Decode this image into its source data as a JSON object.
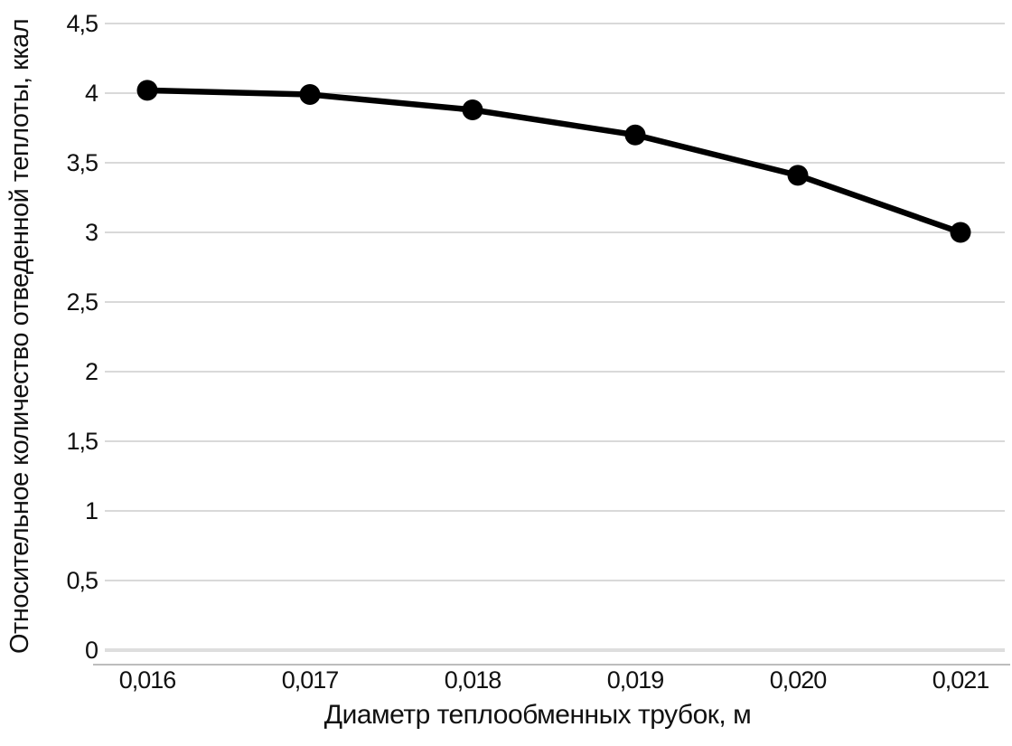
{
  "chart_data": {
    "type": "line",
    "xlabel": "Диаметр теплообменных трубок, м",
    "ylabel": "Относительное количество отведенной теплоты, ккал",
    "x": [
      0.016,
      0.017,
      0.018,
      0.019,
      0.02,
      0.021
    ],
    "x_tick_labels": [
      "0,016",
      "0,017",
      "0,018",
      "0,019",
      "0,020",
      "0,021"
    ],
    "yticks": [
      4.5,
      4,
      3.5,
      3,
      2.5,
      2,
      1.5,
      1,
      0.5,
      0
    ],
    "y_tick_labels": [
      "4,5",
      "4",
      "3,5",
      "3",
      "2,5",
      "2",
      "1,5",
      "1",
      "0,5",
      "0"
    ],
    "series": [
      {
        "values": [
          4.02,
          3.99,
          3.88,
          3.7,
          3.41,
          3.0
        ]
      }
    ],
    "ylim": [
      0,
      4.5
    ],
    "grid": true,
    "legend": false,
    "marker": "circle",
    "line_color": "#000000",
    "gridline_color": "#d9d9d9",
    "zero_gridline_color": "#dedede",
    "axis_line_color": "#bdbdbd"
  }
}
